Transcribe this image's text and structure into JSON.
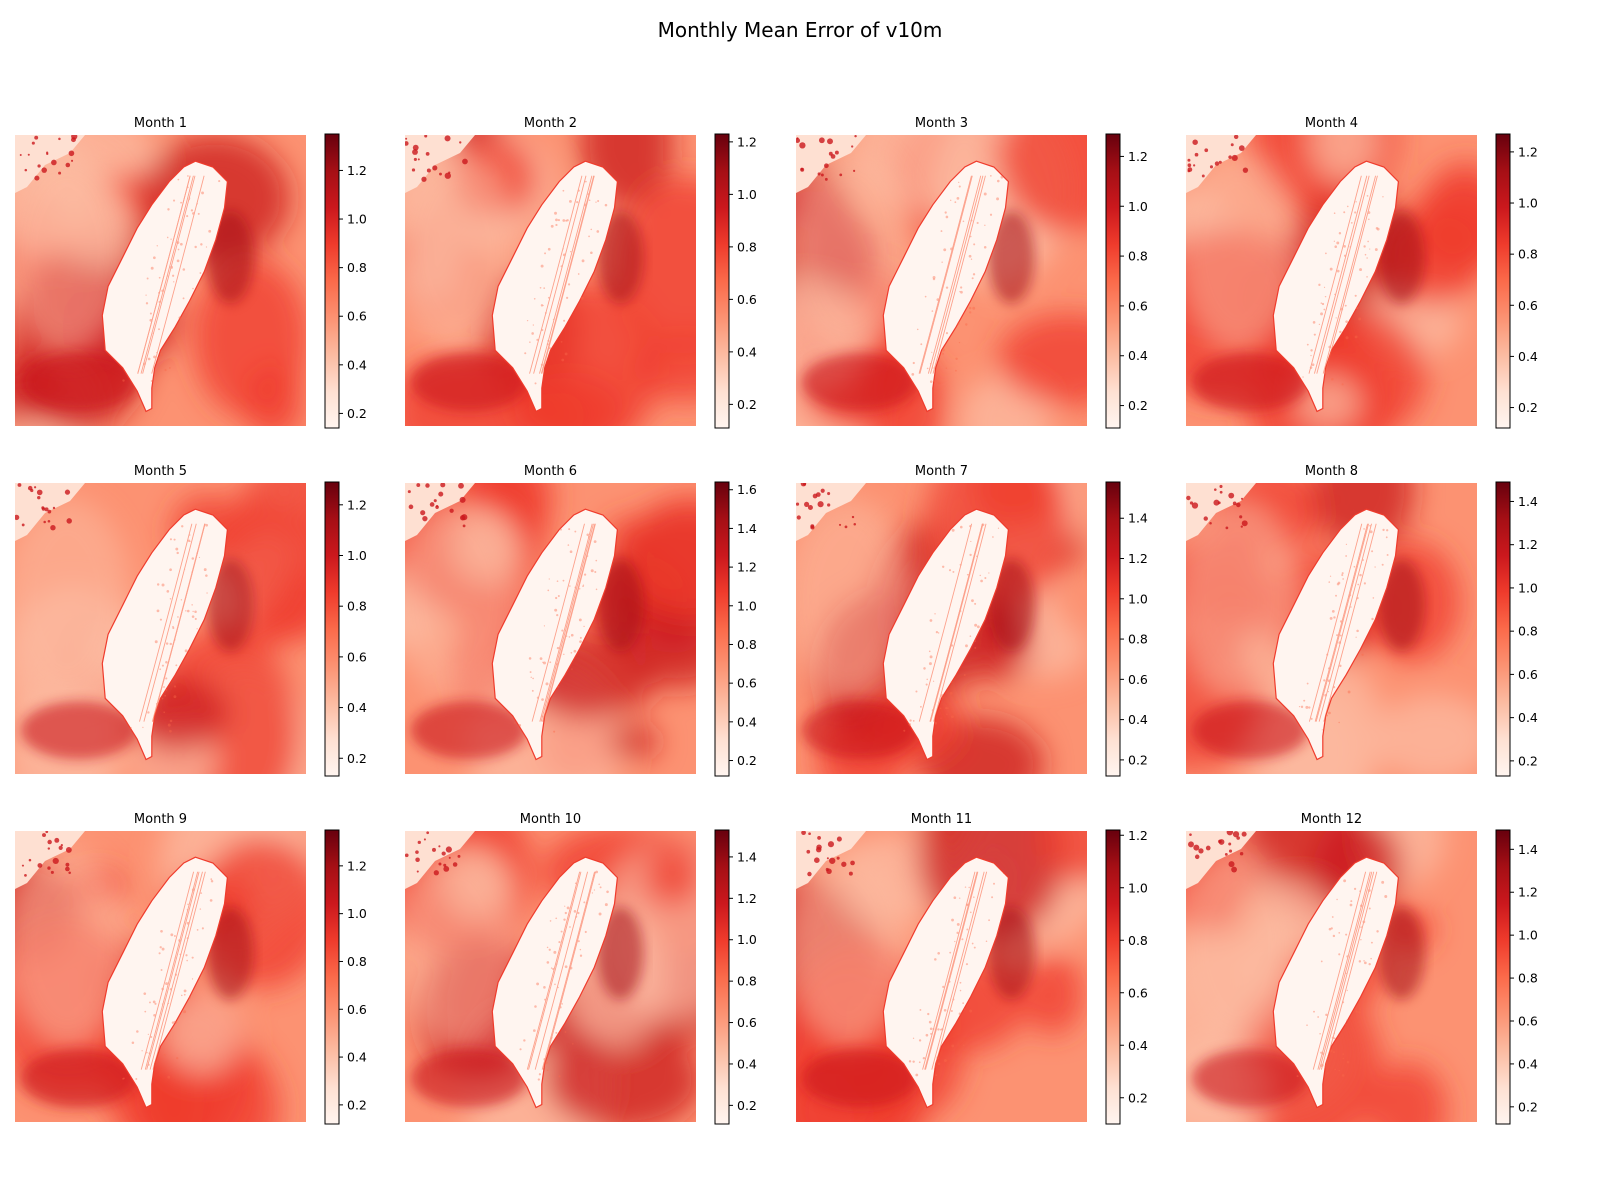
{
  "figure_title": "Monthly Mean Error of v10m",
  "colormap": "Reds",
  "colormap_stops": [
    "#fff5f0",
    "#fee0d2",
    "#fcbba1",
    "#fc9272",
    "#fb6a4a",
    "#ef3b2c",
    "#cb181d",
    "#a50f15",
    "#67000d"
  ],
  "chart_data": [
    {
      "type": "heatmap",
      "title": "Month 1",
      "vmin": 0.14,
      "vmax": 1.35,
      "ticks": [
        0.2,
        0.4,
        0.6,
        0.8,
        1.0,
        1.2
      ]
    },
    {
      "type": "heatmap",
      "title": "Month 2",
      "vmin": 0.11,
      "vmax": 1.23,
      "ticks": [
        0.2,
        0.4,
        0.6,
        0.8,
        1.0,
        1.2
      ]
    },
    {
      "type": "heatmap",
      "title": "Month 3",
      "vmin": 0.11,
      "vmax": 1.29,
      "ticks": [
        0.2,
        0.4,
        0.6,
        0.8,
        1.0,
        1.2
      ]
    },
    {
      "type": "heatmap",
      "title": "Month 4",
      "vmin": 0.12,
      "vmax": 1.27,
      "ticks": [
        0.2,
        0.4,
        0.6,
        0.8,
        1.0,
        1.2
      ]
    },
    {
      "type": "heatmap",
      "title": "Month 5",
      "vmin": 0.13,
      "vmax": 1.29,
      "ticks": [
        0.2,
        0.4,
        0.6,
        0.8,
        1.0,
        1.2
      ]
    },
    {
      "type": "heatmap",
      "title": "Month 6",
      "vmin": 0.12,
      "vmax": 1.64,
      "ticks": [
        0.2,
        0.4,
        0.6,
        0.8,
        1.0,
        1.2,
        1.4,
        1.6
      ]
    },
    {
      "type": "heatmap",
      "title": "Month 7",
      "vmin": 0.12,
      "vmax": 1.58,
      "ticks": [
        0.2,
        0.4,
        0.6,
        0.8,
        1.0,
        1.2,
        1.4
      ]
    },
    {
      "type": "heatmap",
      "title": "Month 8",
      "vmin": 0.13,
      "vmax": 1.49,
      "ticks": [
        0.2,
        0.4,
        0.6,
        0.8,
        1.0,
        1.2,
        1.4
      ]
    },
    {
      "type": "heatmap",
      "title": "Month 9",
      "vmin": 0.12,
      "vmax": 1.35,
      "ticks": [
        0.2,
        0.4,
        0.6,
        0.8,
        1.0,
        1.2
      ]
    },
    {
      "type": "heatmap",
      "title": "Month 10",
      "vmin": 0.11,
      "vmax": 1.53,
      "ticks": [
        0.2,
        0.4,
        0.6,
        0.8,
        1.0,
        1.2,
        1.4
      ]
    },
    {
      "type": "heatmap",
      "title": "Month 11",
      "vmin": 0.1,
      "vmax": 1.22,
      "ticks": [
        0.2,
        0.4,
        0.6,
        0.8,
        1.0,
        1.2
      ]
    },
    {
      "type": "heatmap",
      "title": "Month 12",
      "vmin": 0.12,
      "vmax": 1.49,
      "ticks": [
        0.2,
        0.4,
        0.6,
        0.8,
        1.0,
        1.2,
        1.4
      ]
    }
  ]
}
